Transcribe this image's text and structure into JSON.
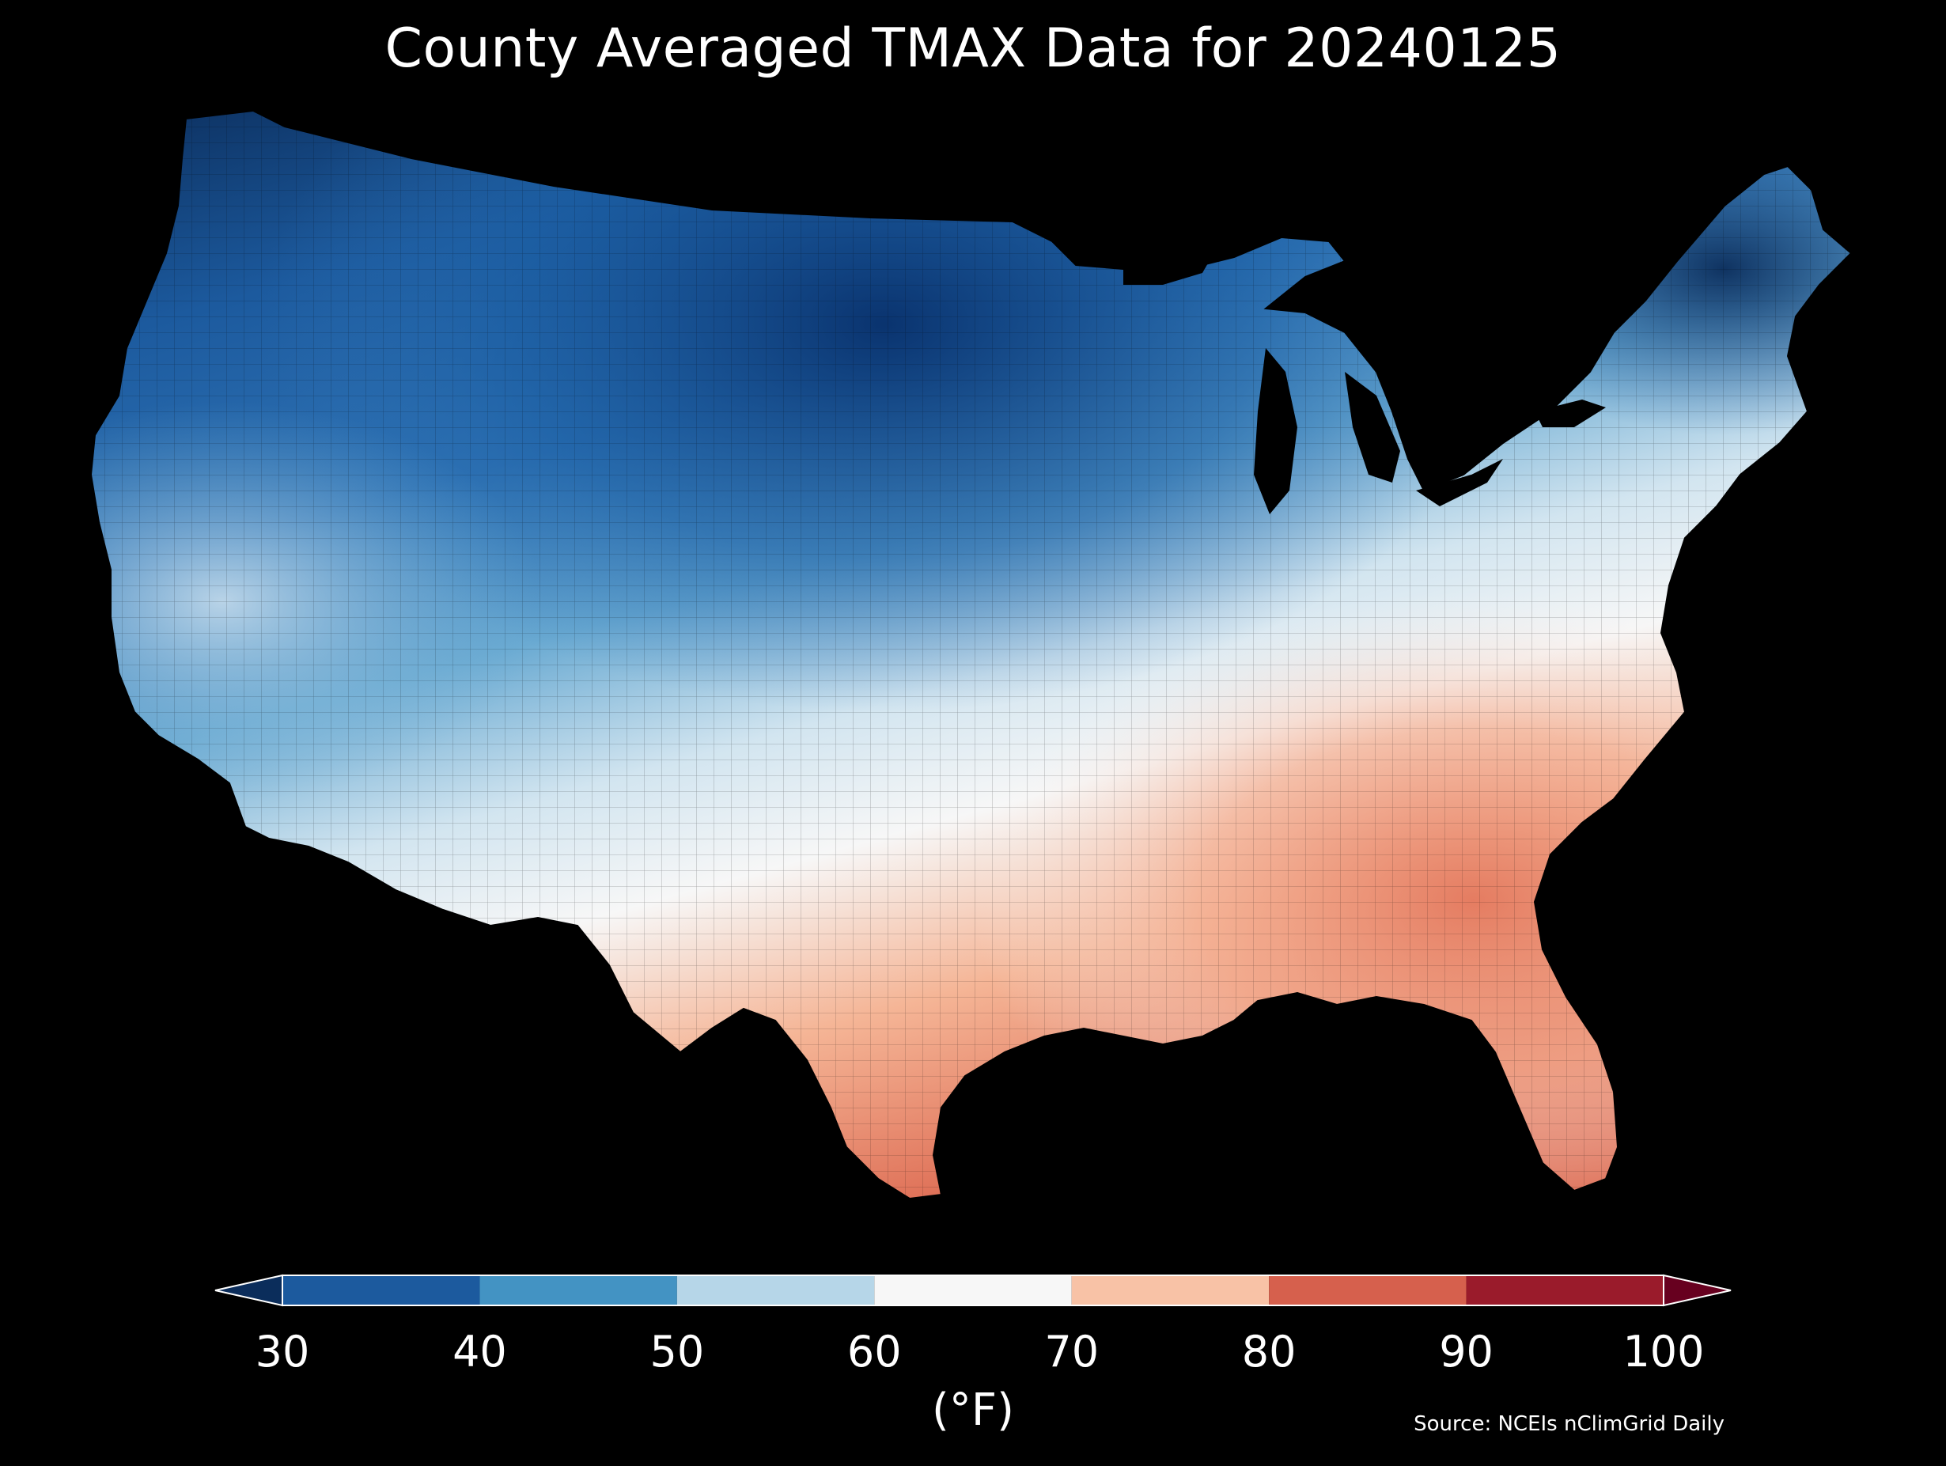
{
  "title": "County Averaged TMAX Data for 20240125",
  "colorbar": {
    "label": "(°F)",
    "ticks": [
      "30",
      "40",
      "50",
      "60",
      "70",
      "80",
      "90",
      "100"
    ],
    "bins": [
      {
        "min": 30,
        "max": 40,
        "color": "#1c5a9e"
      },
      {
        "min": 40,
        "max": 50,
        "color": "#4393c3"
      },
      {
        "min": 50,
        "max": 60,
        "color": "#b6d6e8"
      },
      {
        "min": 60,
        "max": 70,
        "color": "#f7f7f7"
      },
      {
        "min": 70,
        "max": 80,
        "color": "#f8c2a6"
      },
      {
        "min": 80,
        "max": 90,
        "color": "#d6604d"
      },
      {
        "min": 90,
        "max": 100,
        "color": "#9a1b2b"
      }
    ],
    "extend_low_color": "#0b2d5b",
    "extend_high_color": "#67001f"
  },
  "source": "Source: NCEIs nClimGrid Daily",
  "map": {
    "region": "Contiguous United States",
    "variable": "TMAX",
    "units": "°F",
    "background": "#000000"
  }
}
